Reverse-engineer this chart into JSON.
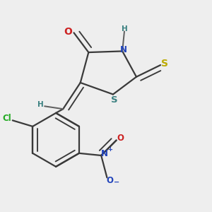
{
  "bg_color": "#eeeeee",
  "bond_color": "#3a3a3a",
  "bond_width": 1.6,
  "colors": {
    "C": "#3a3a3a",
    "N": "#2244bb",
    "O": "#cc2222",
    "S": "#bbaa00",
    "S_ring": "#3a8080",
    "Cl": "#22aa22",
    "H": "#3a8080",
    "N_nitro": "#2244bb",
    "O_nitro": "#cc2222"
  }
}
